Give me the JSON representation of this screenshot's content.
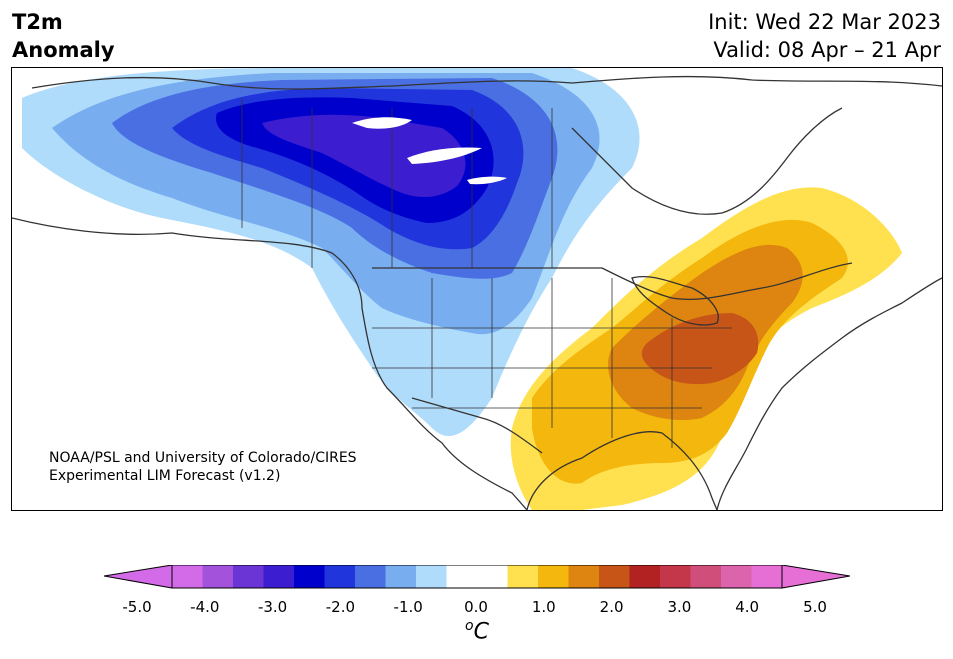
{
  "header": {
    "title_line1": "T2m",
    "title_line2": "Anomaly",
    "init": "Init: Wed 22 Mar 2023",
    "valid": "Valid: 08 Apr – 21 Apr"
  },
  "credit": {
    "line1": "NOAA/PSL and University of Colorado/CIRES",
    "line2": "Experimental LIM Forecast (v1.2)"
  },
  "colorbar": {
    "ticks": [
      "-5.0",
      "-4.0",
      "-3.0",
      "-2.0",
      "-1.0",
      "0.0",
      "1.0",
      "2.0",
      "3.0",
      "4.0",
      "5.0"
    ],
    "units_base": "C",
    "units_sup": "o",
    "colors": [
      "#d36be8",
      "#a252db",
      "#6b35d6",
      "#3c1dd0",
      "#0000cc",
      "#2035dc",
      "#4a6fe3",
      "#78aef0",
      "#b0dcfc",
      "#ffffff",
      "#ffffff",
      "#ffe14f",
      "#f4b70d",
      "#dd8510",
      "#c85518",
      "#b22222",
      "#c4364a",
      "#d04f7a",
      "#dc64ac",
      "#e66fd6"
    ],
    "min_color": "#d36be8",
    "max_color": "#e66fd6"
  },
  "map": {
    "region": "North America",
    "variable": "2m temperature anomaly",
    "land_outline_color": "#333333",
    "ocean_color": "#ffffff"
  }
}
